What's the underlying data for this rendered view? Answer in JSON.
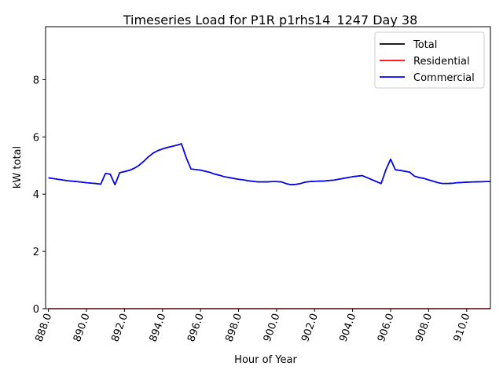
{
  "chart_data": {
    "type": "line",
    "title": "Timeseries Load for P1R p1rhs14_1247  Day 38",
    "xlabel": "Hour of Year",
    "ylabel": "kW total",
    "xlim": [
      887.85,
      911.25
    ],
    "ylim": [
      0,
      9.85
    ],
    "x_ticks": [
      888,
      890,
      892,
      894,
      896,
      898,
      900,
      902,
      904,
      906,
      908,
      910
    ],
    "x_tick_labels": [
      "888.0",
      "890.0",
      "892.0",
      "894.0",
      "896.0",
      "898.0",
      "900.0",
      "902.0",
      "904.0",
      "906.0",
      "908.0",
      "910.0"
    ],
    "y_ticks": [
      0,
      2,
      4,
      6,
      8
    ],
    "y_tick_labels": [
      "0",
      "2",
      "4",
      "6",
      "8"
    ],
    "legend_position": "top-right",
    "grid": false,
    "series": [
      {
        "name": "Total",
        "color": "#000000",
        "x": [
          888.0,
          888.5,
          889.0,
          889.5,
          890.0,
          890.5,
          890.75,
          891.0,
          891.25,
          891.5,
          891.75,
          892.0,
          892.25,
          892.5,
          892.75,
          893.0,
          893.25,
          893.5,
          893.75,
          894.0,
          894.25,
          894.5,
          894.75,
          895.0,
          895.25,
          895.5,
          895.75,
          896.0,
          896.25,
          896.5,
          896.75,
          897.0,
          897.25,
          897.5,
          897.75,
          898.0,
          898.25,
          898.5,
          898.75,
          899.0,
          899.25,
          899.5,
          899.75,
          900.0,
          900.25,
          900.5,
          900.75,
          901.0,
          901.25,
          901.5,
          901.75,
          902.0,
          902.5,
          903.0,
          903.5,
          904.0,
          904.5,
          904.75,
          905.0,
          905.5,
          905.75,
          906.0,
          906.25,
          906.5,
          906.75,
          907.0,
          907.25,
          907.5,
          907.75,
          908.0,
          908.25,
          908.5,
          908.75,
          909.0,
          909.25,
          909.5,
          909.75,
          910.0,
          910.5,
          911.0,
          911.25
        ],
        "values": [
          4.57,
          4.52,
          4.47,
          4.44,
          4.4,
          4.37,
          4.35,
          4.72,
          4.7,
          4.33,
          4.75,
          4.79,
          4.83,
          4.9,
          5.0,
          5.14,
          5.3,
          5.43,
          5.52,
          5.58,
          5.63,
          5.67,
          5.71,
          5.76,
          5.27,
          4.88,
          4.86,
          4.84,
          4.8,
          4.76,
          4.7,
          4.66,
          4.61,
          4.58,
          4.55,
          4.52,
          4.5,
          4.47,
          4.45,
          4.43,
          4.43,
          4.43,
          4.44,
          4.44,
          4.43,
          4.37,
          4.33,
          4.34,
          4.37,
          4.42,
          4.44,
          4.45,
          4.46,
          4.49,
          4.55,
          4.61,
          4.65,
          4.58,
          4.51,
          4.37,
          4.85,
          5.22,
          4.85,
          4.83,
          4.8,
          4.77,
          4.63,
          4.58,
          4.55,
          4.5,
          4.45,
          4.4,
          4.37,
          4.37,
          4.38,
          4.4,
          4.41,
          4.42,
          4.43,
          4.44,
          4.44
        ]
      },
      {
        "name": "Residential",
        "color": "#ff0000",
        "x": [
          888.0,
          911.25
        ],
        "values": [
          0.0,
          0.0
        ]
      },
      {
        "name": "Commercial",
        "color": "#0000ff",
        "x": [
          888.0,
          888.5,
          889.0,
          889.5,
          890.0,
          890.5,
          890.75,
          891.0,
          891.25,
          891.5,
          891.75,
          892.0,
          892.25,
          892.5,
          892.75,
          893.0,
          893.25,
          893.5,
          893.75,
          894.0,
          894.25,
          894.5,
          894.75,
          895.0,
          895.25,
          895.5,
          895.75,
          896.0,
          896.25,
          896.5,
          896.75,
          897.0,
          897.25,
          897.5,
          897.75,
          898.0,
          898.25,
          898.5,
          898.75,
          899.0,
          899.25,
          899.5,
          899.75,
          900.0,
          900.25,
          900.5,
          900.75,
          901.0,
          901.25,
          901.5,
          901.75,
          902.0,
          902.5,
          903.0,
          903.5,
          904.0,
          904.5,
          904.75,
          905.0,
          905.5,
          905.75,
          906.0,
          906.25,
          906.5,
          906.75,
          907.0,
          907.25,
          907.5,
          907.75,
          908.0,
          908.25,
          908.5,
          908.75,
          909.0,
          909.25,
          909.5,
          909.75,
          910.0,
          910.5,
          911.0,
          911.25
        ],
        "values": [
          4.57,
          4.52,
          4.47,
          4.44,
          4.4,
          4.37,
          4.35,
          4.72,
          4.7,
          4.33,
          4.75,
          4.79,
          4.83,
          4.9,
          5.0,
          5.14,
          5.3,
          5.43,
          5.52,
          5.58,
          5.63,
          5.67,
          5.71,
          5.76,
          5.27,
          4.88,
          4.86,
          4.84,
          4.8,
          4.76,
          4.7,
          4.66,
          4.61,
          4.58,
          4.55,
          4.52,
          4.5,
          4.47,
          4.45,
          4.43,
          4.43,
          4.43,
          4.44,
          4.44,
          4.43,
          4.37,
          4.33,
          4.34,
          4.37,
          4.42,
          4.44,
          4.45,
          4.46,
          4.49,
          4.55,
          4.61,
          4.65,
          4.58,
          4.51,
          4.37,
          4.85,
          5.22,
          4.85,
          4.83,
          4.8,
          4.77,
          4.63,
          4.58,
          4.55,
          4.5,
          4.45,
          4.4,
          4.37,
          4.37,
          4.38,
          4.4,
          4.41,
          4.42,
          4.43,
          4.44,
          4.44
        ]
      }
    ]
  }
}
